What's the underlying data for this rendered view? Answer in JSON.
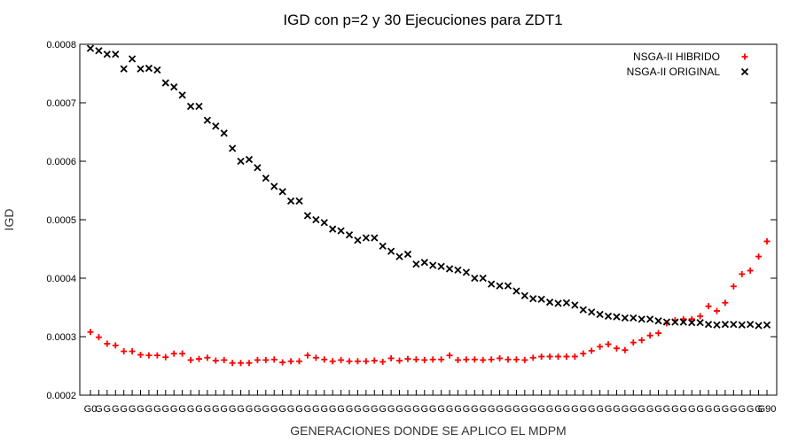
{
  "chart_data": {
    "type": "scatter",
    "title": "IGD con p=2 y 30 Ejecuciones para ZDT1",
    "xlabel": "GENERACIONES DONDE SE APLICO EL MDPM",
    "ylabel": "IGD",
    "ylim": [
      0.0002,
      0.0008
    ],
    "yticks": [
      "0.0002",
      "0.0003",
      "0.0004",
      "0.0005",
      "0.0006",
      "0.0007",
      "0.0008"
    ],
    "grid": false,
    "legend": "top-right",
    "x_tick_label_first": "G0",
    "x_tick_label_last": "G90",
    "x_tick_labels_overlapping": true,
    "series": [
      {
        "name": "NSGA-II HIBRIDO",
        "color": "#ff0000",
        "marker": "plus",
        "values": [
          0.000308,
          0.000299,
          0.000288,
          0.000285,
          0.000275,
          0.000275,
          0.000269,
          0.000268,
          0.000268,
          0.000265,
          0.000271,
          0.000271,
          0.00026,
          0.000262,
          0.000264,
          0.000259,
          0.00026,
          0.000255,
          0.000255,
          0.000255,
          0.00026,
          0.00026,
          0.000261,
          0.000256,
          0.000258,
          0.000258,
          0.000268,
          0.000264,
          0.000261,
          0.000258,
          0.00026,
          0.000258,
          0.000258,
          0.000258,
          0.000259,
          0.000257,
          0.000263,
          0.000259,
          0.000262,
          0.000261,
          0.00026,
          0.000261,
          0.000261,
          0.000268,
          0.00026,
          0.000261,
          0.000261,
          0.00026,
          0.000261,
          0.000263,
          0.000261,
          0.000261,
          0.00026,
          0.000264,
          0.000266,
          0.000266,
          0.000266,
          0.000266,
          0.000266,
          0.000271,
          0.000276,
          0.000283,
          0.000287,
          0.00028,
          0.000277,
          0.00029,
          0.000294,
          0.000302,
          0.000306,
          0.000323,
          0.000328,
          0.00033,
          0.00033,
          0.000335,
          0.000352,
          0.000344,
          0.000358,
          0.000386,
          0.000407,
          0.000413,
          0.000437,
          0.000463
        ]
      },
      {
        "name": "NSGA-II ORIGINAL",
        "color": "#000000",
        "marker": "cross",
        "values": [
          0.000793,
          0.000789,
          0.000783,
          0.000783,
          0.000758,
          0.000775,
          0.000758,
          0.000759,
          0.000756,
          0.000734,
          0.000727,
          0.000713,
          0.000694,
          0.000694,
          0.00067,
          0.00066,
          0.000648,
          0.000622,
          0.0006,
          0.000603,
          0.000589,
          0.000571,
          0.000557,
          0.000548,
          0.000532,
          0.000532,
          0.000507,
          0.0005,
          0.000495,
          0.000484,
          0.000481,
          0.000474,
          0.000465,
          0.000469,
          0.000469,
          0.000455,
          0.000446,
          0.000437,
          0.000441,
          0.000424,
          0.000427,
          0.000422,
          0.00042,
          0.000416,
          0.000414,
          0.00041,
          0.0004,
          0.0004,
          0.00039,
          0.000387,
          0.000387,
          0.000378,
          0.00037,
          0.000365,
          0.000364,
          0.000359,
          0.000357,
          0.000358,
          0.000354,
          0.000346,
          0.000342,
          0.000338,
          0.000335,
          0.000334,
          0.000332,
          0.000332,
          0.00033,
          0.00033,
          0.000327,
          0.000325,
          0.000325,
          0.000325,
          0.000324,
          0.000324,
          0.000321,
          0.00032,
          0.000321,
          0.000321,
          0.00032,
          0.000321,
          0.000319,
          0.00032
        ]
      }
    ]
  }
}
